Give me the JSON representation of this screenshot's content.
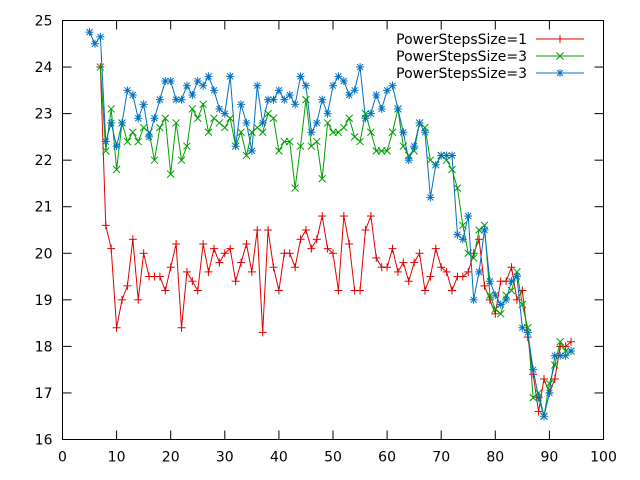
{
  "chart_data": {
    "type": "line",
    "title": "",
    "xlabel": "",
    "ylabel": "",
    "xlim": [
      0,
      100
    ],
    "ylim": [
      16,
      25
    ],
    "xticks": [
      0,
      10,
      20,
      30,
      40,
      50,
      60,
      70,
      80,
      90,
      100
    ],
    "yticks": [
      16,
      17,
      18,
      19,
      20,
      21,
      22,
      23,
      24,
      25
    ],
    "grid": false,
    "legend_position": "top-right",
    "series": [
      {
        "name": "PowerStepsSize=1",
        "color": "#e00000",
        "marker": "plus",
        "points": [
          [
            7,
            24.0
          ],
          [
            8,
            20.6
          ],
          [
            9,
            20.1
          ],
          [
            10,
            18.4
          ],
          [
            11,
            19.0
          ],
          [
            12,
            19.3
          ],
          [
            13,
            20.3
          ],
          [
            14,
            19.0
          ],
          [
            15,
            20.0
          ],
          [
            16,
            19.5
          ],
          [
            17,
            19.5
          ],
          [
            18,
            19.5
          ],
          [
            19,
            19.2
          ],
          [
            20,
            19.7
          ],
          [
            21,
            20.2
          ],
          [
            22,
            18.4
          ],
          [
            23,
            19.6
          ],
          [
            24,
            19.4
          ],
          [
            25,
            19.2
          ],
          [
            26,
            20.2
          ],
          [
            27,
            19.6
          ],
          [
            28,
            20.1
          ],
          [
            29,
            19.8
          ],
          [
            30,
            20.0
          ],
          [
            31,
            20.1
          ],
          [
            32,
            19.4
          ],
          [
            33,
            19.8
          ],
          [
            34,
            20.2
          ],
          [
            35,
            19.6
          ],
          [
            36,
            20.5
          ],
          [
            37,
            18.3
          ],
          [
            38,
            20.5
          ],
          [
            39,
            19.7
          ],
          [
            40,
            19.2
          ],
          [
            41,
            20.0
          ],
          [
            42,
            20.0
          ],
          [
            43,
            19.7
          ],
          [
            44,
            20.3
          ],
          [
            45,
            20.5
          ],
          [
            46,
            20.1
          ],
          [
            47,
            20.3
          ],
          [
            48,
            20.8
          ],
          [
            49,
            20.1
          ],
          [
            50,
            20.0
          ],
          [
            51,
            19.2
          ],
          [
            52,
            20.8
          ],
          [
            53,
            20.2
          ],
          [
            54,
            19.2
          ],
          [
            55,
            19.2
          ],
          [
            56,
            20.5
          ],
          [
            57,
            20.8
          ],
          [
            58,
            19.9
          ],
          [
            59,
            19.7
          ],
          [
            60,
            19.7
          ],
          [
            61,
            20.1
          ],
          [
            62,
            19.6
          ],
          [
            63,
            19.8
          ],
          [
            64,
            19.4
          ],
          [
            65,
            19.8
          ],
          [
            66,
            20.0
          ],
          [
            67,
            19.2
          ],
          [
            68,
            19.5
          ],
          [
            69,
            20.1
          ],
          [
            70,
            19.7
          ],
          [
            71,
            19.6
          ],
          [
            72,
            19.2
          ],
          [
            73,
            19.5
          ],
          [
            74,
            19.5
          ],
          [
            75,
            19.6
          ],
          [
            76,
            20.0
          ],
          [
            77,
            20.3
          ],
          [
            78,
            19.3
          ],
          [
            79,
            19.0
          ],
          [
            80,
            18.7
          ],
          [
            81,
            19.4
          ],
          [
            82,
            19.4
          ],
          [
            83,
            19.7
          ],
          [
            84,
            19.0
          ],
          [
            85,
            19.2
          ],
          [
            86,
            18.2
          ],
          [
            87,
            17.4
          ],
          [
            88,
            16.6
          ],
          [
            89,
            17.3
          ],
          [
            90,
            17.0
          ],
          [
            91,
            17.3
          ],
          [
            92,
            18.0
          ],
          [
            93,
            18.0
          ],
          [
            94,
            18.1
          ]
        ]
      },
      {
        "name": "PowerStepsSize=3",
        "color": "#00a000",
        "marker": "cross",
        "points": [
          [
            7,
            24.0
          ],
          [
            8,
            22.2
          ],
          [
            9,
            23.1
          ],
          [
            10,
            21.8
          ],
          [
            11,
            22.8
          ],
          [
            12,
            22.4
          ],
          [
            13,
            22.6
          ],
          [
            14,
            22.4
          ],
          [
            15,
            22.7
          ],
          [
            16,
            22.6
          ],
          [
            17,
            22.0
          ],
          [
            18,
            22.7
          ],
          [
            19,
            22.9
          ],
          [
            20,
            21.7
          ],
          [
            21,
            22.8
          ],
          [
            22,
            22.0
          ],
          [
            23,
            22.3
          ],
          [
            24,
            23.1
          ],
          [
            25,
            22.9
          ],
          [
            26,
            23.2
          ],
          [
            27,
            22.6
          ],
          [
            28,
            22.9
          ],
          [
            29,
            22.8
          ],
          [
            30,
            22.7
          ],
          [
            31,
            22.9
          ],
          [
            32,
            22.3
          ],
          [
            33,
            22.6
          ],
          [
            34,
            22.1
          ],
          [
            35,
            22.6
          ],
          [
            36,
            22.7
          ],
          [
            37,
            22.6
          ],
          [
            38,
            23.0
          ],
          [
            39,
            22.9
          ],
          [
            40,
            22.2
          ],
          [
            41,
            22.4
          ],
          [
            42,
            22.4
          ],
          [
            43,
            21.4
          ],
          [
            44,
            22.3
          ],
          [
            45,
            23.3
          ],
          [
            46,
            22.3
          ],
          [
            47,
            22.4
          ],
          [
            48,
            21.6
          ],
          [
            49,
            22.8
          ],
          [
            50,
            22.6
          ],
          [
            51,
            22.6
          ],
          [
            52,
            22.7
          ],
          [
            53,
            22.9
          ],
          [
            54,
            22.5
          ],
          [
            55,
            22.4
          ],
          [
            56,
            23.0
          ],
          [
            57,
            22.6
          ],
          [
            58,
            22.2
          ],
          [
            59,
            22.2
          ],
          [
            60,
            22.2
          ],
          [
            61,
            22.6
          ],
          [
            62,
            23.1
          ],
          [
            63,
            22.3
          ],
          [
            64,
            22.1
          ],
          [
            65,
            22.2
          ],
          [
            66,
            22.8
          ],
          [
            67,
            22.7
          ],
          [
            68,
            22.0
          ],
          [
            69,
            21.9
          ],
          [
            70,
            22.1
          ],
          [
            71,
            22.0
          ],
          [
            72,
            21.8
          ],
          [
            73,
            21.4
          ],
          [
            74,
            20.6
          ],
          [
            75,
            20.0
          ],
          [
            76,
            19.9
          ],
          [
            77,
            20.5
          ],
          [
            78,
            20.6
          ],
          [
            79,
            19.1
          ],
          [
            80,
            18.8
          ],
          [
            81,
            18.7
          ],
          [
            82,
            19.1
          ],
          [
            83,
            19.2
          ],
          [
            84,
            19.6
          ],
          [
            85,
            18.9
          ],
          [
            86,
            18.4
          ],
          [
            87,
            16.9
          ],
          [
            88,
            17.0
          ],
          [
            89,
            16.5
          ],
          [
            90,
            17.2
          ],
          [
            91,
            17.6
          ],
          [
            92,
            18.1
          ],
          [
            93,
            17.9
          ],
          [
            94,
            17.9
          ]
        ]
      },
      {
        "name": "PowerStepsSize=3",
        "color": "#0070c0",
        "marker": "star",
        "points": [
          [
            5,
            24.75
          ],
          [
            6,
            24.5
          ],
          [
            7,
            24.65
          ],
          [
            8,
            22.4
          ],
          [
            9,
            22.8
          ],
          [
            10,
            22.3
          ],
          [
            11,
            22.8
          ],
          [
            12,
            23.5
          ],
          [
            13,
            23.4
          ],
          [
            14,
            22.9
          ],
          [
            15,
            23.2
          ],
          [
            16,
            22.5
          ],
          [
            17,
            22.9
          ],
          [
            18,
            23.3
          ],
          [
            19,
            23.7
          ],
          [
            20,
            23.7
          ],
          [
            21,
            23.3
          ],
          [
            22,
            23.3
          ],
          [
            23,
            23.6
          ],
          [
            24,
            23.4
          ],
          [
            25,
            23.7
          ],
          [
            26,
            23.6
          ],
          [
            27,
            23.8
          ],
          [
            28,
            23.5
          ],
          [
            29,
            23.1
          ],
          [
            30,
            23.0
          ],
          [
            31,
            23.8
          ],
          [
            32,
            22.3
          ],
          [
            33,
            23.2
          ],
          [
            34,
            22.8
          ],
          [
            35,
            22.2
          ],
          [
            36,
            23.6
          ],
          [
            37,
            22.8
          ],
          [
            38,
            23.3
          ],
          [
            39,
            23.3
          ],
          [
            40,
            23.5
          ],
          [
            41,
            23.3
          ],
          [
            42,
            23.4
          ],
          [
            43,
            23.2
          ],
          [
            44,
            23.8
          ],
          [
            45,
            23.6
          ],
          [
            46,
            22.6
          ],
          [
            47,
            22.8
          ],
          [
            48,
            23.3
          ],
          [
            49,
            23.0
          ],
          [
            50,
            23.6
          ],
          [
            51,
            23.8
          ],
          [
            52,
            23.7
          ],
          [
            53,
            23.4
          ],
          [
            54,
            23.5
          ],
          [
            55,
            24.0
          ],
          [
            56,
            22.9
          ],
          [
            57,
            23.0
          ],
          [
            58,
            23.4
          ],
          [
            59,
            23.1
          ],
          [
            60,
            23.5
          ],
          [
            61,
            23.6
          ],
          [
            62,
            23.1
          ],
          [
            63,
            22.6
          ],
          [
            64,
            22.0
          ],
          [
            65,
            22.3
          ],
          [
            66,
            22.8
          ],
          [
            67,
            22.6
          ],
          [
            68,
            21.2
          ],
          [
            69,
            21.9
          ],
          [
            70,
            22.1
          ],
          [
            71,
            22.1
          ],
          [
            72,
            22.1
          ],
          [
            73,
            20.4
          ],
          [
            74,
            20.3
          ],
          [
            75,
            20.8
          ],
          [
            76,
            19.0
          ],
          [
            77,
            19.6
          ],
          [
            78,
            20.5
          ],
          [
            79,
            19.4
          ],
          [
            80,
            19.1
          ],
          [
            81,
            18.9
          ],
          [
            82,
            19.0
          ],
          [
            83,
            19.4
          ],
          [
            84,
            19.5
          ],
          [
            85,
            18.4
          ],
          [
            86,
            18.3
          ],
          [
            87,
            17.5
          ],
          [
            88,
            16.9
          ],
          [
            89,
            16.5
          ],
          [
            90,
            17.0
          ],
          [
            91,
            17.8
          ],
          [
            92,
            17.8
          ],
          [
            93,
            17.8
          ],
          [
            94,
            17.9
          ]
        ]
      }
    ]
  }
}
